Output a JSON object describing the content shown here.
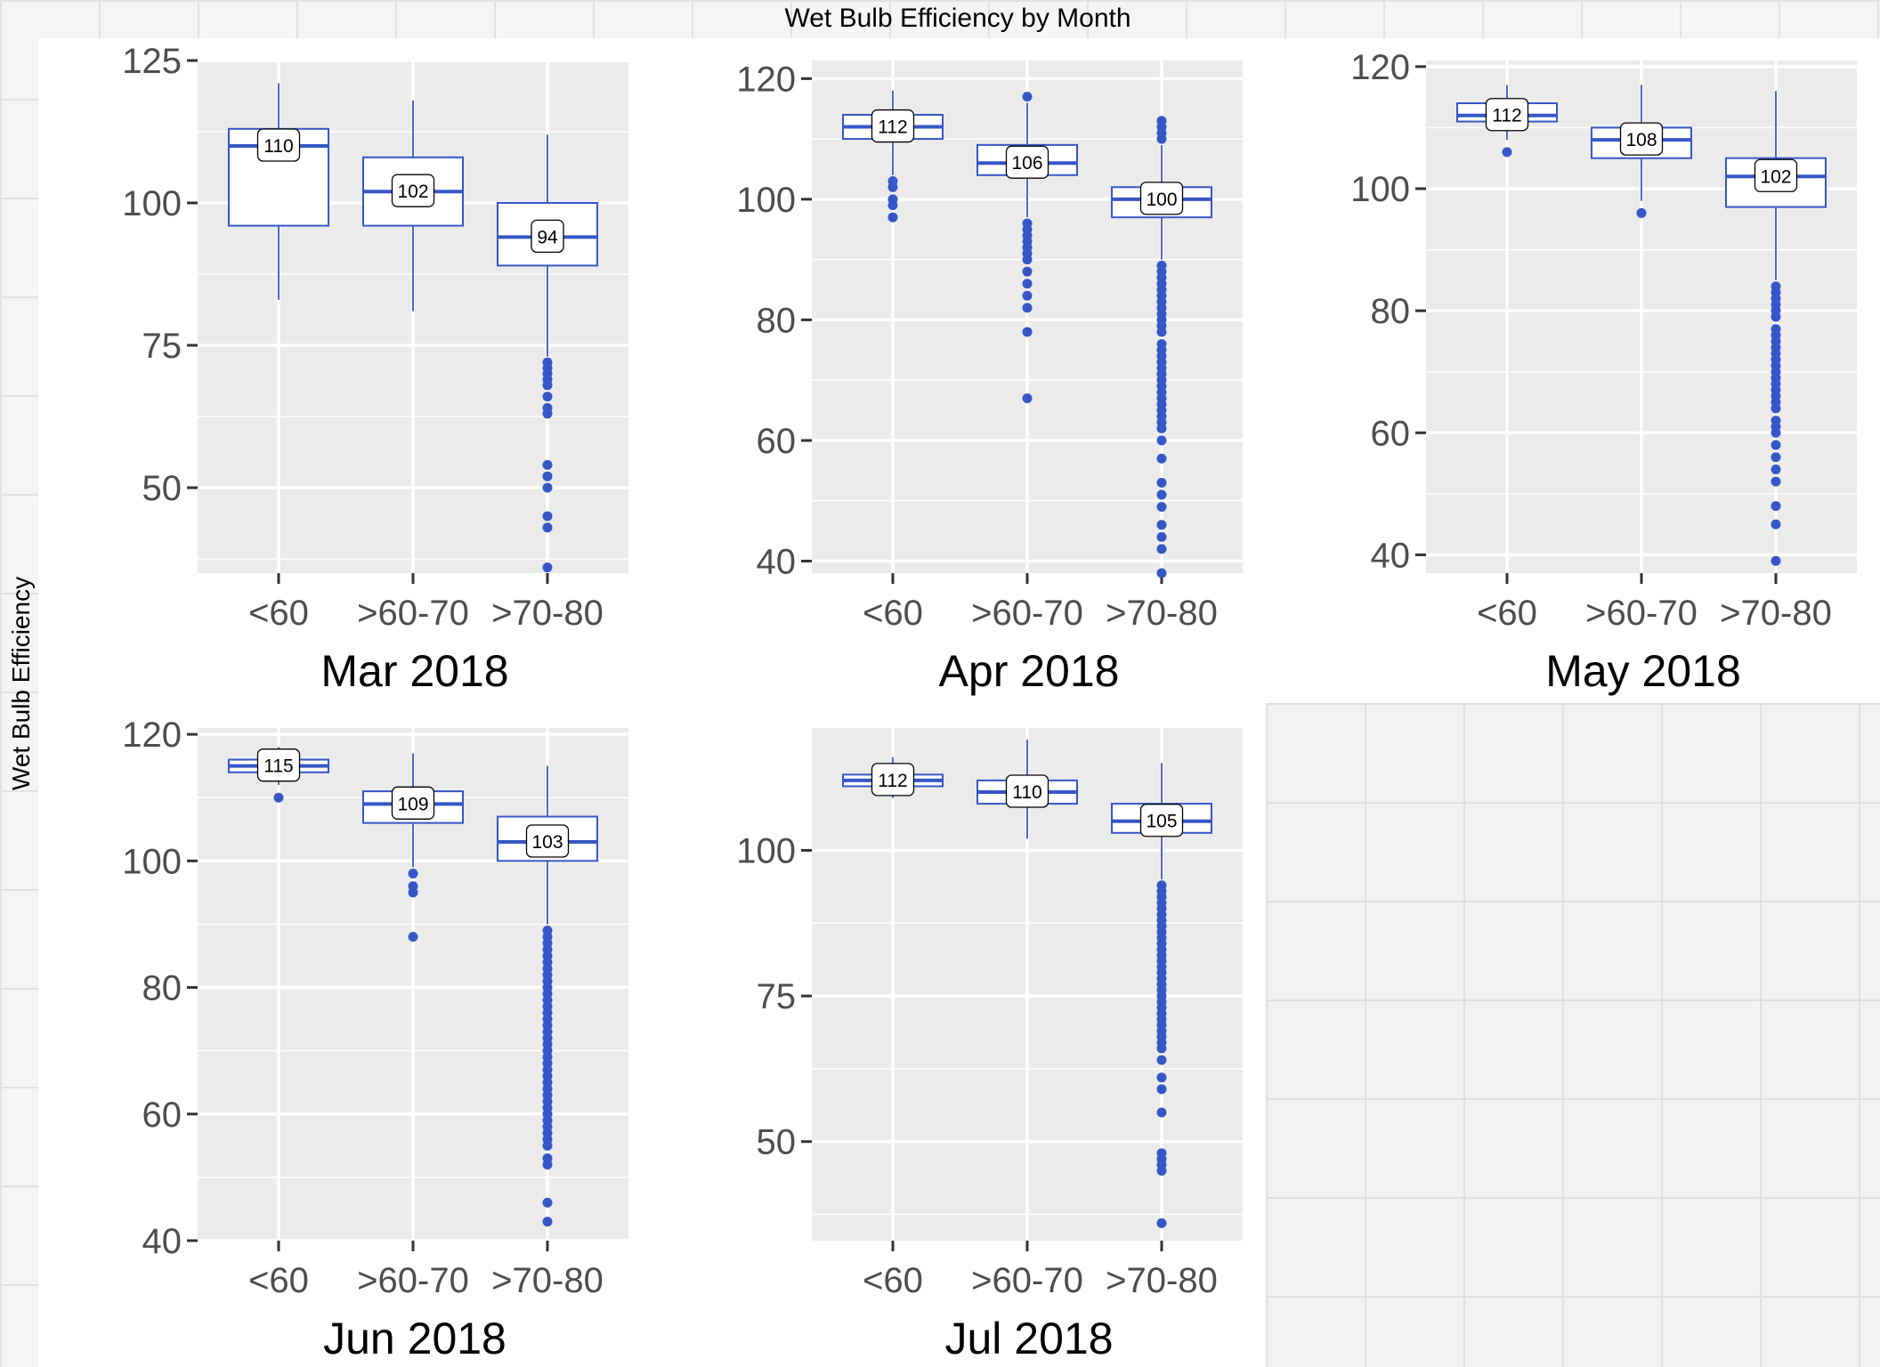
{
  "title": "Wet Bulb Efficiency by Month",
  "ylabel": "Wet Bulb Efficiency",
  "colors": {
    "box": "#3557c7",
    "panel_bg": "#ebebeb",
    "grid": "#ffffff",
    "text": "#4d4d4d"
  },
  "chart_data": [
    {
      "type": "box",
      "panel": "Mar 2018",
      "categories": [
        "<60",
        ">60-70",
        ">70-80"
      ],
      "ylim": [
        35,
        125
      ],
      "yticks": [
        50,
        75,
        100,
        125
      ],
      "boxes": [
        {
          "q1": 96,
          "median": 110,
          "q3": 113,
          "whisker_low": 83,
          "whisker_high": 121,
          "label": "110",
          "outliers": []
        },
        {
          "q1": 96,
          "median": 102,
          "q3": 108,
          "whisker_low": 81,
          "whisker_high": 118,
          "label": "102",
          "outliers": []
        },
        {
          "q1": 89,
          "median": 94,
          "q3": 100,
          "whisker_low": 73,
          "whisker_high": 112,
          "label": "94",
          "outliers": [
            72,
            71,
            70,
            69,
            68,
            66,
            64,
            63,
            54,
            52,
            50,
            45,
            43,
            36
          ]
        }
      ]
    },
    {
      "type": "box",
      "panel": "Apr 2018",
      "categories": [
        "<60",
        ">60-70",
        ">70-80"
      ],
      "ylim": [
        38,
        123
      ],
      "yticks": [
        40,
        60,
        80,
        100,
        120
      ],
      "boxes": [
        {
          "q1": 110,
          "median": 112,
          "q3": 114,
          "whisker_low": 104,
          "whisker_high": 118,
          "label": "112",
          "outliers": [
            103,
            102,
            100,
            99,
            97
          ]
        },
        {
          "q1": 104,
          "median": 106,
          "q3": 109,
          "whisker_low": 97,
          "whisker_high": 116,
          "label": "106",
          "outliers": [
            117,
            96,
            95,
            94,
            93,
            92,
            91,
            90,
            88,
            86,
            84,
            82,
            78,
            67
          ]
        },
        {
          "q1": 97,
          "median": 100,
          "q3": 102,
          "whisker_low": 90,
          "whisker_high": 109,
          "label": "100",
          "outliers": [
            113,
            112,
            111,
            110,
            89,
            88,
            87,
            86,
            85,
            84,
            83,
            82,
            81,
            80,
            79,
            78,
            76,
            75,
            74,
            73,
            72,
            71,
            70,
            69,
            68,
            67,
            66,
            65,
            64,
            63,
            62,
            60,
            57,
            53,
            51,
            49,
            46,
            44,
            42,
            38
          ]
        }
      ]
    },
    {
      "type": "box",
      "panel": "May 2018",
      "categories": [
        "<60",
        ">60-70",
        ">70-80"
      ],
      "ylim": [
        37,
        121
      ],
      "yticks": [
        40,
        60,
        80,
        100,
        120
      ],
      "boxes": [
        {
          "q1": 111,
          "median": 112,
          "q3": 114,
          "whisker_low": 108,
          "whisker_high": 117,
          "label": "112",
          "outliers": [
            106
          ]
        },
        {
          "q1": 105,
          "median": 108,
          "q3": 110,
          "whisker_low": 98,
          "whisker_high": 117,
          "label": "108",
          "outliers": [
            96
          ]
        },
        {
          "q1": 97,
          "median": 102,
          "q3": 105,
          "whisker_low": 85,
          "whisker_high": 116,
          "label": "102",
          "outliers": [
            84,
            83,
            82,
            81,
            80,
            79,
            77,
            76,
            75,
            74,
            73,
            72,
            71,
            70,
            69,
            68,
            67,
            66,
            65,
            64,
            62,
            61,
            60,
            58,
            56,
            54,
            52,
            48,
            45,
            39
          ]
        }
      ]
    },
    {
      "type": "box",
      "panel": "Jun 2018",
      "categories": [
        "<60",
        ">60-70",
        ">70-80"
      ],
      "ylim": [
        40,
        121
      ],
      "yticks": [
        40,
        60,
        80,
        100,
        120
      ],
      "boxes": [
        {
          "q1": 114,
          "median": 115,
          "q3": 116,
          "whisker_low": 112,
          "whisker_high": 118,
          "label": "115",
          "outliers": [
            110
          ]
        },
        {
          "q1": 106,
          "median": 109,
          "q3": 111,
          "whisker_low": 99,
          "whisker_high": 117,
          "label": "109",
          "outliers": [
            98,
            96,
            95,
            88
          ]
        },
        {
          "q1": 100,
          "median": 103,
          "q3": 107,
          "whisker_low": 90,
          "whisker_high": 115,
          "label": "103",
          "outliers": [
            89,
            88,
            87,
            86,
            85,
            84,
            83,
            82,
            81,
            80,
            79,
            78,
            77,
            76,
            75,
            74,
            73,
            72,
            71,
            70,
            69,
            68,
            67,
            66,
            65,
            64,
            63,
            62,
            61,
            60,
            59,
            58,
            57,
            56,
            55,
            53,
            52,
            46,
            43
          ]
        }
      ]
    },
    {
      "type": "box",
      "panel": "Jul 2018",
      "categories": [
        "<60",
        ">60-70",
        ">70-80"
      ],
      "ylim": [
        33,
        121
      ],
      "yticks": [
        50,
        75,
        100
      ],
      "boxes": [
        {
          "q1": 111,
          "median": 112,
          "q3": 113,
          "whisker_low": 109,
          "whisker_high": 116,
          "label": "112",
          "outliers": []
        },
        {
          "q1": 108,
          "median": 110,
          "q3": 112,
          "whisker_low": 102,
          "whisker_high": 119,
          "label": "110",
          "outliers": []
        },
        {
          "q1": 103,
          "median": 105,
          "q3": 108,
          "whisker_low": 95,
          "whisker_high": 115,
          "label": "105",
          "outliers": [
            94,
            93,
            92,
            91,
            90,
            89,
            88,
            87,
            86,
            85,
            84,
            83,
            82,
            81,
            80,
            79,
            78,
            77,
            76,
            75,
            74,
            73,
            72,
            71,
            70,
            69,
            68,
            67,
            66,
            64,
            61,
            59,
            55,
            48,
            47,
            46,
            45,
            36
          ]
        }
      ]
    }
  ]
}
